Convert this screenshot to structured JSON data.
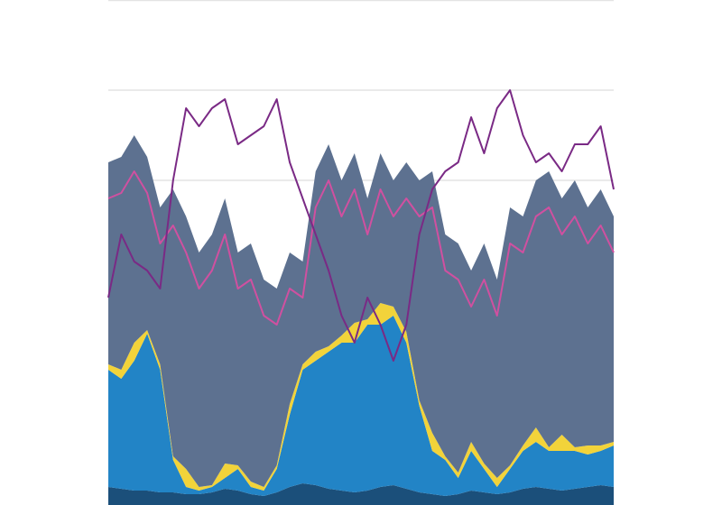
{
  "chart_data": {
    "type": "area",
    "stacked": true,
    "grid": true,
    "categories": [
      null,
      null,
      null,
      null,
      null,
      null,
      null,
      null,
      null,
      null,
      null,
      null,
      null,
      null,
      null,
      null,
      null,
      null,
      null,
      null,
      null,
      null,
      null,
      null,
      null,
      null,
      null,
      null,
      null,
      null,
      null,
      null,
      null,
      null,
      null,
      null,
      null,
      null,
      null,
      null
    ],
    "ylim": [
      0,
      28
    ],
    "yticks": [
      18,
      23,
      28
    ],
    "series": [
      {
        "color": "#1b4f7a",
        "type": "area",
        "values": [
          1,
          0.9,
          0.8,
          0.8,
          0.7,
          0.7,
          0.6,
          0.6,
          0.7,
          0.9,
          0.8,
          0.6,
          0.5,
          0.7,
          1,
          1.2,
          1.1,
          0.9,
          0.8,
          0.7,
          0.8,
          1,
          1.1,
          0.9,
          0.7,
          0.6,
          0.5,
          0.6,
          0.8,
          0.7,
          0.6,
          0.7,
          0.9,
          1,
          0.9,
          0.8,
          0.9,
          1,
          1.1,
          1
        ]
      },
      {
        "color": "#2284c6",
        "type": "area",
        "values": [
          6.5,
          6.1,
          7.2,
          8.7,
          6.8,
          1.8,
          0.4,
          0.2,
          0.3,
          0.6,
          1.2,
          0.4,
          0.3,
          1.3,
          4,
          6.3,
          6.9,
          7.6,
          8.2,
          8.3,
          9.2,
          9,
          9.4,
          8.1,
          4.8,
          2.4,
          2,
          0.9,
          2.2,
          1.3,
          0.4,
          1.3,
          2.1,
          2.5,
          2.1,
          2.2,
          2.1,
          1.8,
          1.9,
          2.3
        ]
      },
      {
        "color": "#f2d33a",
        "type": "area",
        "values": [
          0.3,
          0.5,
          1,
          0.2,
          0.3,
          0.2,
          1,
          0.2,
          0.1,
          0.8,
          0.2,
          0.3,
          0.2,
          0.2,
          0.6,
          0.3,
          0.5,
          0.3,
          0.4,
          1.1,
          0.3,
          1.2,
          0.5,
          0.6,
          0.3,
          1,
          0.2,
          0.3,
          0.5,
          0.3,
          0.5,
          0.2,
          0.3,
          0.8,
          0.2,
          0.9,
          0.2,
          0.5,
          0.3,
          0.2
        ]
      },
      {
        "color": "#5d7190",
        "type": "area",
        "values": [
          11.2,
          11.8,
          11.5,
          9.6,
          8.7,
          14.8,
          14,
          13,
          13.9,
          14.7,
          11.8,
          13.2,
          11.5,
          9.8,
          8.4,
          5.7,
          10,
          11.2,
          8.6,
          9.4,
          6.7,
          8.3,
          7,
          9.4,
          12.2,
          14.5,
          12.3,
          12.7,
          9.5,
          12.2,
          11,
          14.3,
          12.7,
          13.7,
          15.3,
          13.1,
          14.8,
          13.2,
          14.2,
          12.5
        ]
      },
      {
        "color": "#d050a0",
        "type": "line",
        "values": [
          17,
          17.3,
          18.5,
          17.3,
          14.5,
          15.5,
          14,
          12,
          13,
          15,
          12,
          12.5,
          10.5,
          10,
          12,
          11.5,
          16.5,
          18,
          16,
          17.5,
          15,
          17.5,
          16,
          17,
          16,
          16.5,
          13,
          12.5,
          11,
          12.5,
          10.5,
          14.5,
          14,
          16,
          16.5,
          15,
          16,
          14.5,
          15.5,
          14
        ]
      },
      {
        "color": "#7a2a85",
        "type": "line",
        "values": [
          11.5,
          15,
          13.5,
          13,
          12,
          18,
          22,
          21,
          22,
          22.5,
          20,
          20.5,
          21,
          22.5,
          19,
          17,
          15,
          13,
          10.5,
          9,
          11.5,
          10,
          8,
          10,
          15,
          17.5,
          18.5,
          19,
          21.5,
          19.5,
          22,
          23,
          20.5,
          19,
          19.5,
          18.5,
          20,
          20,
          21,
          17.5
        ]
      }
    ]
  }
}
